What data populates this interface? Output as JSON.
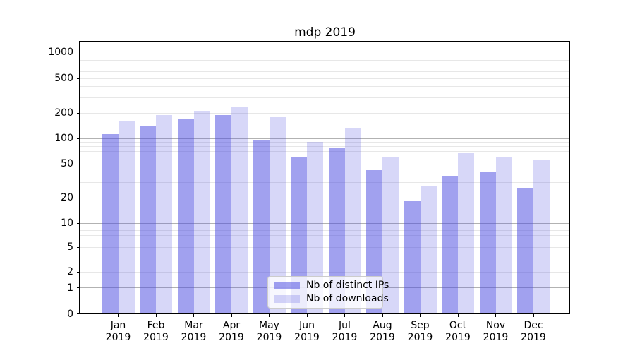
{
  "window": {
    "title": "mdp 2019"
  },
  "chart_data": {
    "type": "bar",
    "title": "mdp 2019",
    "categories": [
      "Jan",
      "Feb",
      "Mar",
      "Apr",
      "May",
      "Jun",
      "Jul",
      "Aug",
      "Sep",
      "Oct",
      "Nov",
      "Dec"
    ],
    "category_year": "2019",
    "series": [
      {
        "name": "Nb of distinct IPs",
        "color": "rgba(75,75,225,0.52)",
        "values": [
          113,
          140,
          168,
          190,
          96,
          59,
          76,
          42,
          18,
          36,
          40,
          26
        ]
      },
      {
        "name": "Nb of downloads",
        "color": "rgba(75,75,225,0.22)",
        "values": [
          160,
          190,
          210,
          235,
          178,
          91,
          130,
          59,
          27,
          67,
          59,
          56
        ]
      }
    ],
    "xlabel": "",
    "ylabel": "",
    "yscale": "symlog-1-2-5",
    "ylim": [
      0,
      1340
    ],
    "yticks": [
      0,
      1,
      2,
      5,
      10,
      20,
      50,
      100,
      200,
      500,
      1000
    ],
    "grid": {
      "show": true,
      "major_at": [
        1,
        10,
        100,
        1000
      ],
      "minor_subs": [
        2,
        3,
        4,
        5,
        6,
        7,
        8,
        9
      ],
      "major_color": "#b2b2b2",
      "minor_color": "#e7e7e7"
    },
    "legend": {
      "position": "lower center",
      "entries": [
        "Nb of distinct IPs",
        "Nb of downloads"
      ]
    },
    "y_axis_anchors": [
      [
        0,
        0.0
      ],
      [
        1,
        0.0947
      ],
      [
        2,
        0.1543
      ],
      [
        5,
        0.2451
      ],
      [
        10,
        0.3333
      ],
      [
        20,
        0.4267
      ],
      [
        50,
        0.5512
      ],
      [
        100,
        0.6446
      ],
      [
        200,
        0.738
      ],
      [
        500,
        0.8651
      ],
      [
        1000,
        0.9611
      ]
    ]
  }
}
